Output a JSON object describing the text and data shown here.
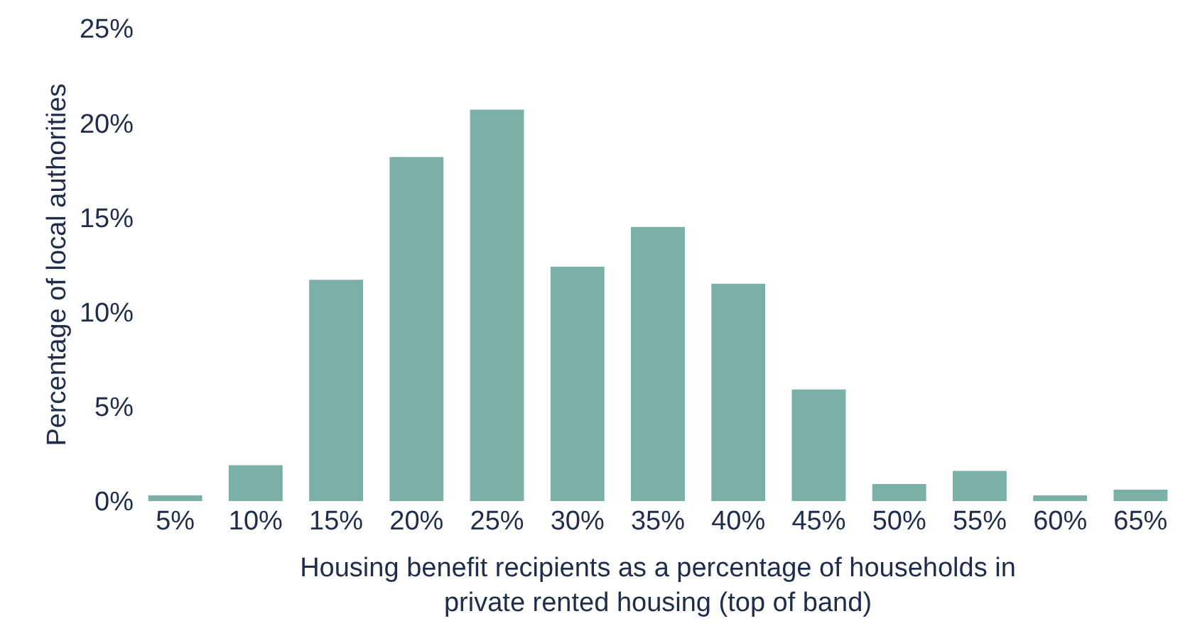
{
  "chart_data": {
    "type": "bar",
    "xlabel": "Housing benefit recipients as a percentage of households in private rented housing (top of band)",
    "ylabel": "Percentage of local authorities",
    "categories": [
      "5%",
      "10%",
      "15%",
      "20%",
      "25%",
      "30%",
      "35%",
      "40%",
      "45%",
      "50%",
      "55%",
      "60%",
      "65%"
    ],
    "series": [
      {
        "color": "#7ab0a8",
        "values": [
          0.3,
          1.9,
          11.7,
          18.2,
          20.7,
          12.4,
          14.5,
          11.5,
          5.9,
          0.9,
          1.6,
          0.3,
          0.6
        ]
      }
    ],
    "ylim": [
      0,
      25
    ],
    "yticks": [
      {
        "value": 0,
        "label": "0%"
      },
      {
        "value": 5,
        "label": "5%"
      },
      {
        "value": 10,
        "label": "10%"
      },
      {
        "value": 15,
        "label": "15%"
      },
      {
        "value": 20,
        "label": "20%"
      },
      {
        "value": 25,
        "label": "25%"
      }
    ],
    "tick_labels": true
  }
}
